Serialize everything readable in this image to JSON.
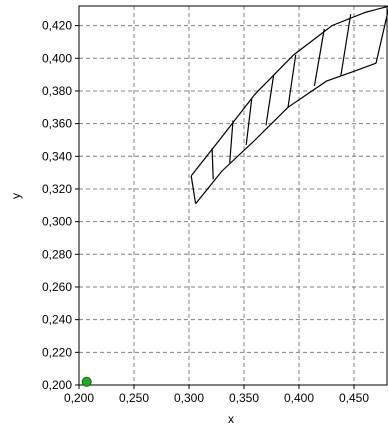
{
  "chart_data": {
    "type": "line",
    "title": "",
    "xlabel": "x",
    "ylabel": "y",
    "xlim": [
      0.2,
      0.48
    ],
    "ylim": [
      0.2,
      0.432
    ],
    "x_ticks": [
      0.2,
      0.25,
      0.3,
      0.35,
      0.4,
      0.45
    ],
    "x_tick_labels": [
      "0,200",
      "0,250",
      "0,300",
      "0,350",
      "0,400",
      "0,450"
    ],
    "y_ticks": [
      0.2,
      0.22,
      0.24,
      0.26,
      0.28,
      0.3,
      0.32,
      0.34,
      0.36,
      0.38,
      0.4,
      0.42
    ],
    "y_tick_labels": [
      "0,200",
      "0,220",
      "0,240",
      "0,260",
      "0,280",
      "0,300",
      "0,320",
      "0,340",
      "0,360",
      "0,380",
      "0,400",
      "0,420"
    ],
    "grid": true,
    "legend": "none",
    "colors": {
      "line": "#000000",
      "grid": "#808080",
      "marker_fill": "#22aa22",
      "marker_edge": "#0a6a0a"
    },
    "series": [
      {
        "x": [
          0.302,
          0.33,
          0.36,
          0.395,
          0.43,
          0.46,
          0.482
        ],
        "y": [
          0.328,
          0.352,
          0.378,
          0.402,
          0.42,
          0.428,
          0.432
        ]
      },
      {
        "x": [
          0.306,
          0.33,
          0.36,
          0.39,
          0.425,
          0.45,
          0.47
        ],
        "y": [
          0.311,
          0.331,
          0.35,
          0.37,
          0.386,
          0.392,
          0.397
        ]
      },
      {
        "x": [
          0.302,
          0.306
        ],
        "y": [
          0.328,
          0.311
        ]
      },
      {
        "x": [
          0.482,
          0.47
        ],
        "y": [
          0.432,
          0.397
        ]
      },
      {
        "x": [
          0.321,
          0.322
        ],
        "y": [
          0.345,
          0.326
        ]
      },
      {
        "x": [
          0.34,
          0.337
        ],
        "y": [
          0.362,
          0.336
        ]
      },
      {
        "x": [
          0.357,
          0.352
        ],
        "y": [
          0.375,
          0.347
        ]
      },
      {
        "x": [
          0.377,
          0.37
        ],
        "y": [
          0.39,
          0.359
        ]
      },
      {
        "x": [
          0.397,
          0.39
        ],
        "y": [
          0.402,
          0.37
        ]
      },
      {
        "x": [
          0.423,
          0.414
        ],
        "y": [
          0.418,
          0.383
        ]
      },
      {
        "x": [
          0.447,
          0.438
        ],
        "y": [
          0.427,
          0.389
        ]
      }
    ],
    "points": [
      {
        "x": 0.207,
        "y": 0.202
      }
    ]
  }
}
